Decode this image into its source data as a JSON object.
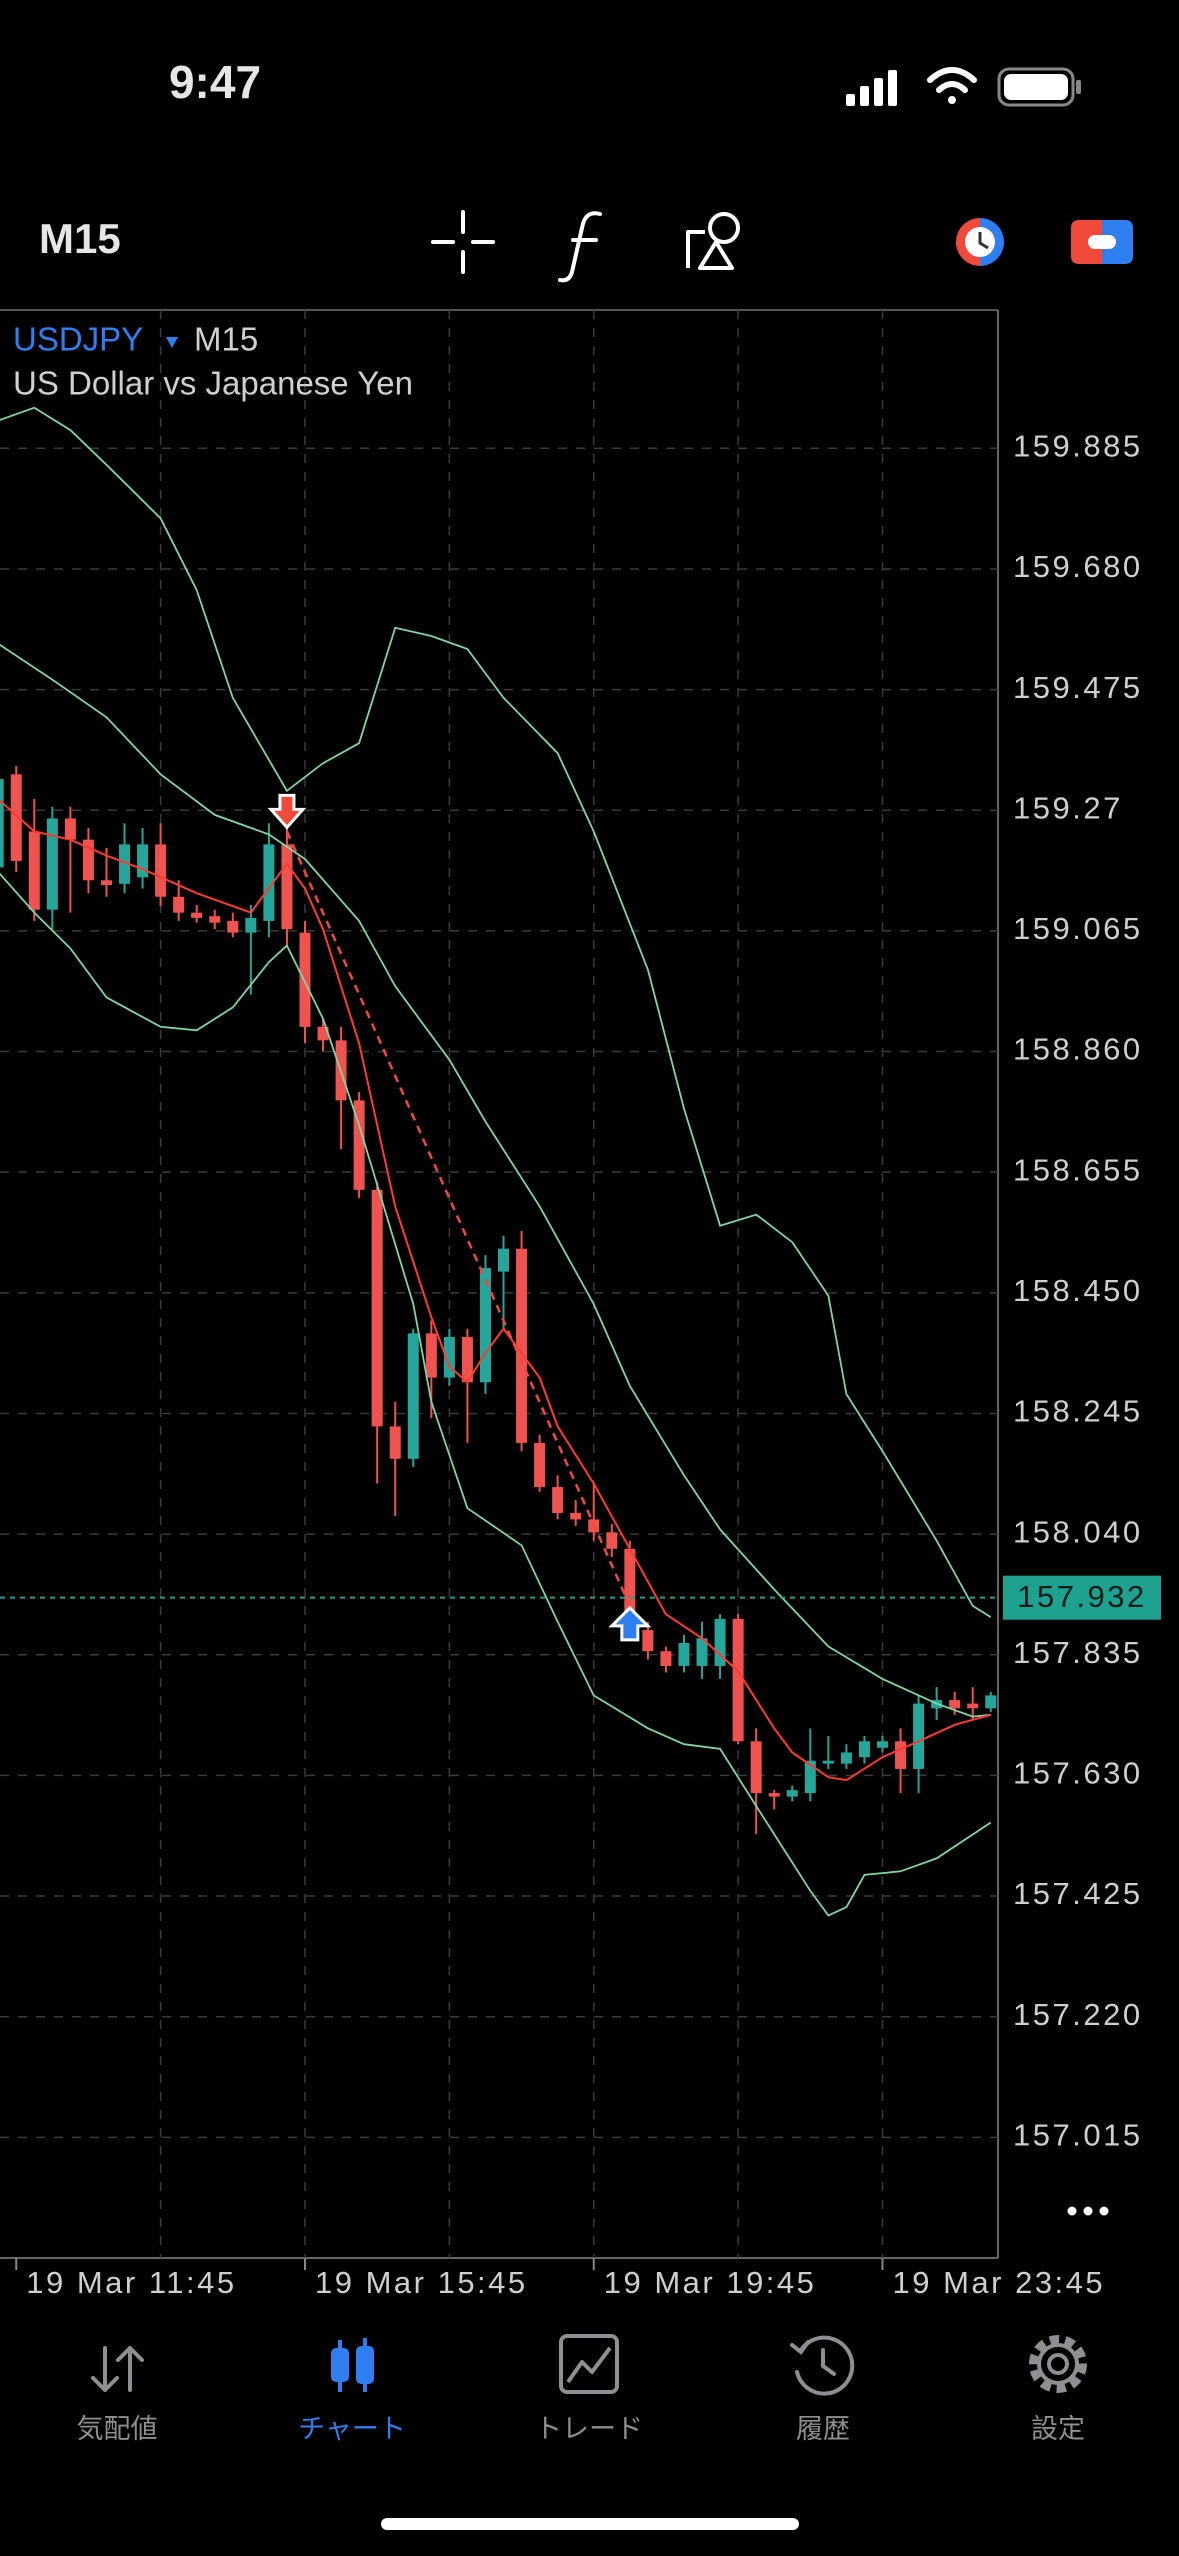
{
  "status_bar": {
    "time": "9:47"
  },
  "toolbar": {
    "timeframe": "M15"
  },
  "chart_data": {
    "type": "candlestick",
    "symbol": "USDJPY",
    "timeframe": "M15",
    "description": "US Dollar vs Japanese Yen",
    "x": [
      -1,
      0,
      1,
      2,
      3,
      4,
      5,
      6,
      7,
      8,
      9,
      10,
      11,
      12,
      13,
      14,
      15,
      16,
      17,
      18,
      19,
      20,
      21,
      22,
      23,
      24,
      25,
      26,
      27,
      28,
      29,
      30,
      31,
      32,
      33,
      34,
      35,
      36,
      37,
      38,
      39,
      40,
      41,
      42,
      43,
      44,
      45,
      46,
      47,
      48,
      49,
      50,
      51,
      52,
      53,
      54
    ],
    "open": [
      159.173,
      159.331,
      159.234,
      159.101,
      159.256,
      159.22,
      159.151,
      159.145,
      159.156,
      159.212,
      159.123,
      159.096,
      159.09,
      159.082,
      159.062,
      159.082,
      159.212,
      159.062,
      158.902,
      158.879,
      158.777,
      158.625,
      158.223,
      158.168,
      158.381,
      158.306,
      158.375,
      158.298,
      158.486,
      158.525,
      158.195,
      158.12,
      158.076,
      158.065,
      158.043,
      158.015,
      157.877,
      157.841,
      157.816,
      157.816,
      157.816,
      157.896,
      157.688,
      157.6,
      157.594,
      157.6,
      157.65,
      157.65,
      157.661,
      157.677,
      157.688,
      157.641,
      157.744,
      157.758,
      157.752,
      157.744
    ],
    "high": [
      159.386,
      159.345,
      159.289,
      159.276,
      159.276,
      159.24,
      159.206,
      159.248,
      159.24,
      159.248,
      159.151,
      159.109,
      159.101,
      159.096,
      159.109,
      159.248,
      159.248,
      159.082,
      158.916,
      158.902,
      158.791,
      158.638,
      158.265,
      158.389,
      158.403,
      158.389,
      158.389,
      158.514,
      158.547,
      158.555,
      158.209,
      158.14,
      158.098,
      158.126,
      158.057,
      158.029,
      157.891,
      157.849,
      157.869,
      157.891,
      157.904,
      157.904,
      157.71,
      157.605,
      157.613,
      157.71,
      157.697,
      157.683,
      157.697,
      157.697,
      157.71,
      157.766,
      157.78,
      157.772,
      157.78,
      157.772
    ],
    "low": [
      159.151,
      159.165,
      159.082,
      159.068,
      159.096,
      159.129,
      159.123,
      159.129,
      159.137,
      159.107,
      159.082,
      159.079,
      159.068,
      159.054,
      158.957,
      159.054,
      159.04,
      158.874,
      158.86,
      158.694,
      158.611,
      158.126,
      158.071,
      158.154,
      158.237,
      158.292,
      158.195,
      158.278,
      158.389,
      158.181,
      158.112,
      158.065,
      158.054,
      158.029,
      158.001,
      157.863,
      157.827,
      157.805,
      157.805,
      157.794,
      157.794,
      157.683,
      157.53,
      157.572,
      157.586,
      157.586,
      157.641,
      157.641,
      157.65,
      157.669,
      157.6,
      157.6,
      157.724,
      157.733,
      157.724,
      157.738
    ],
    "close": [
      159.323,
      159.184,
      159.101,
      159.256,
      159.22,
      159.151,
      159.143,
      159.212,
      159.212,
      159.123,
      159.096,
      159.087,
      159.079,
      159.062,
      159.087,
      159.212,
      159.068,
      158.902,
      158.879,
      158.777,
      158.625,
      158.223,
      158.168,
      158.381,
      158.306,
      158.375,
      158.298,
      158.492,
      158.525,
      158.195,
      158.12,
      158.076,
      158.065,
      158.043,
      158.015,
      157.877,
      157.841,
      157.816,
      157.855,
      157.863,
      157.896,
      157.688,
      157.6,
      157.594,
      157.605,
      157.655,
      157.655,
      157.669,
      157.688,
      157.688,
      157.641,
      157.752,
      157.758,
      157.744,
      157.744,
      157.766
    ],
    "up_color": "#26a69a",
    "down_color": "#ef5350",
    "lines": [
      {
        "color": "#7fd6a4",
        "x": [
          -1,
          1,
          3,
          5,
          8,
          10,
          12,
          15,
          17,
          19,
          21,
          23,
          25,
          27,
          30,
          32,
          35,
          37,
          39,
          41,
          43,
          45,
          46,
          48,
          51,
          53,
          54
        ],
        "values": [
          159.932,
          159.954,
          159.916,
          159.857,
          159.766,
          159.644,
          159.461,
          159.303,
          159.35,
          159.384,
          159.58,
          159.566,
          159.544,
          159.461,
          159.367,
          159.234,
          158.999,
          158.763,
          158.564,
          158.583,
          158.536,
          158.445,
          158.278,
          158.181,
          158.029,
          157.918,
          157.899
        ]
      },
      {
        "color": "#7fd6a4",
        "x": [
          -1,
          2,
          5,
          8,
          11,
          14,
          16,
          19,
          21,
          24,
          26,
          29,
          32,
          34,
          37,
          39,
          42,
          45,
          48,
          51,
          53,
          54
        ],
        "values": [
          159.553,
          159.492,
          159.428,
          159.331,
          159.262,
          159.229,
          159.187,
          159.082,
          158.971,
          158.846,
          158.741,
          158.597,
          158.431,
          158.292,
          158.14,
          158.048,
          157.946,
          157.849,
          157.794,
          157.752,
          157.73,
          157.733
        ]
      },
      {
        "color": "#7fd6a4",
        "x": [
          -1,
          1,
          3,
          5,
          8,
          10,
          12,
          14,
          15,
          17,
          19,
          22,
          23,
          25,
          28,
          30,
          32,
          35,
          37,
          39,
          41,
          44,
          45,
          46,
          47,
          49,
          51,
          54
        ],
        "values": [
          159.165,
          159.096,
          159.035,
          158.952,
          158.902,
          158.896,
          158.935,
          159.012,
          159.04,
          158.916,
          158.735,
          158.431,
          158.265,
          158.084,
          158.021,
          157.891,
          157.766,
          157.71,
          157.683,
          157.675,
          157.578,
          157.434,
          157.392,
          157.406,
          157.461,
          157.467,
          157.489,
          157.55
        ]
      },
      {
        "color": "#ff3b30",
        "x": [
          -1,
          1,
          3,
          5,
          7,
          10,
          13,
          15,
          16,
          17,
          19,
          21,
          23,
          24,
          25,
          26,
          27,
          29,
          30,
          32,
          34,
          36,
          38,
          40,
          42,
          43,
          45,
          46,
          48,
          50,
          52,
          54
        ],
        "values": [
          159.289,
          159.234,
          159.22,
          159.193,
          159.17,
          159.129,
          159.096,
          159.179,
          159.137,
          159.068,
          158.874,
          158.597,
          158.409,
          158.325,
          158.298,
          158.348,
          158.389,
          158.306,
          158.223,
          158.126,
          158.015,
          157.904,
          157.863,
          157.807,
          157.71,
          157.669,
          157.627,
          157.622,
          157.661,
          157.688,
          157.716,
          157.733
        ]
      }
    ],
    "current_price": 157.932,
    "current_price_color": "#1fa18f",
    "trade": {
      "open": {
        "x": 15,
        "price": 159.234,
        "color": "#ef4a3a"
      },
      "close": {
        "x": 34,
        "price": 157.918,
        "color": "#2f7ff0"
      }
    },
    "ylim": [
      156.81,
      160.12
    ],
    "yticks": [
      159.885,
      {
        "value": 159.68,
        "label": "159.680"
      },
      159.475,
      159.27,
      159.065,
      {
        "value": 158.86,
        "label": "158.860"
      },
      158.655,
      {
        "value": 158.45,
        "label": "158.450"
      },
      158.245,
      {
        "value": 158.04,
        "label": "158.040"
      },
      157.835,
      {
        "value": 157.63,
        "label": "157.630"
      },
      157.425,
      {
        "value": 157.22,
        "label": "157.220"
      },
      157.015
    ],
    "xlim": [
      -0.9,
      54.4
    ],
    "xticks": [
      {
        "value": 0,
        "label": "19 Mar 11:45"
      },
      {
        "value": 16,
        "label": "19 Mar 15:45"
      },
      {
        "value": 32,
        "label": "19 Mar 19:45"
      },
      {
        "value": 48,
        "label": "19 Mar 23:45"
      }
    ],
    "xgrid": [
      8,
      16,
      24,
      32,
      40,
      48
    ],
    "grid": true
  },
  "tab_bar": {
    "tabs": [
      "気配値",
      "チャート",
      "トレード",
      "履歴",
      "設定"
    ],
    "active": 1
  }
}
